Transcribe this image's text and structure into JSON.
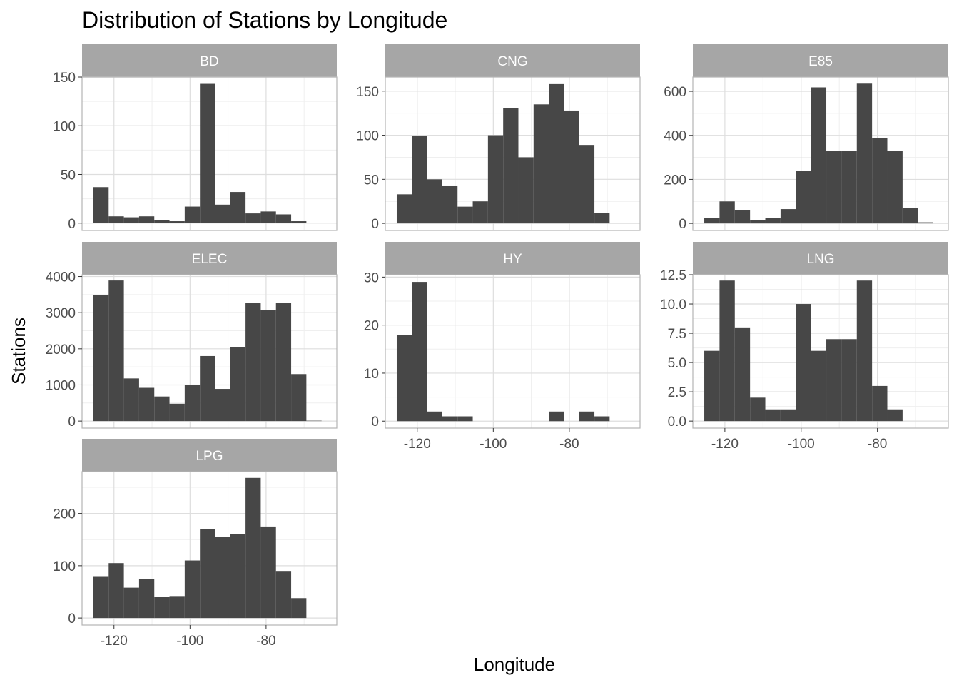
{
  "chart_data": {
    "type": "bar",
    "subtype": "faceted-histogram",
    "title": "Distribution of Stations by Longitude",
    "xlabel": "Longitude",
    "ylabel": "Stations",
    "grid": true,
    "legend": "none",
    "bar_color": "#474747",
    "strip_color": "#a6a6a6",
    "strip_text_color": "#ffffff",
    "panel_border_color": "#b3b3b3",
    "grid_major_color": "#dedede",
    "grid_minor_color": "#efefef",
    "xlim": [
      -128.4,
      -61.4
    ],
    "x_ticks": [
      -120,
      -100,
      -80
    ],
    "x_tick_labels": [
      "-120",
      "-100",
      "-80"
    ],
    "bin_edges": [
      -125.4,
      -121.4,
      -117.4,
      -113.4,
      -109.4,
      -105.4,
      -101.4,
      -97.4,
      -93.4,
      -89.4,
      -85.4,
      -81.4,
      -77.4,
      -73.4,
      -69.4,
      -65.4
    ],
    "facets": [
      {
        "name": "BD",
        "counts": [
          37,
          7,
          6,
          7,
          3,
          2,
          17,
          143,
          19,
          32,
          10,
          12,
          9,
          2,
          0
        ],
        "ylim": [
          -7.5,
          150
        ],
        "y_ticks": [
          0,
          50,
          100,
          150
        ],
        "y_tick_labels": [
          "0",
          "50",
          "100",
          "150"
        ]
      },
      {
        "name": "CNG",
        "counts": [
          33,
          99,
          50,
          43,
          19,
          25,
          100,
          131,
          75,
          135,
          158,
          128,
          89,
          12,
          0
        ],
        "ylim": [
          -8,
          166
        ],
        "y_ticks": [
          0,
          50,
          100,
          150
        ],
        "y_tick_labels": [
          "0",
          "50",
          "100",
          "150"
        ]
      },
      {
        "name": "E85",
        "counts": [
          25,
          100,
          62,
          14,
          25,
          65,
          240,
          618,
          328,
          328,
          635,
          388,
          328,
          70,
          5
        ],
        "ylim": [
          -32,
          665
        ],
        "y_ticks": [
          0,
          200,
          400,
          600
        ],
        "y_tick_labels": [
          "0",
          "200",
          "400",
          "600"
        ]
      },
      {
        "name": "ELEC",
        "counts": [
          3480,
          3890,
          1180,
          920,
          680,
          480,
          1000,
          1800,
          890,
          2050,
          3260,
          3080,
          3260,
          1300,
          10
        ],
        "ylim": [
          -195,
          4050
        ],
        "y_ticks": [
          0,
          1000,
          2000,
          3000,
          4000
        ],
        "y_tick_labels": [
          "0",
          "1000",
          "2000",
          "3000",
          "4000"
        ]
      },
      {
        "name": "HY",
        "counts": [
          18,
          29,
          2,
          1,
          1,
          0,
          0,
          0,
          0,
          0,
          2,
          0,
          2,
          1,
          0
        ],
        "ylim": [
          -1.45,
          30.5
        ],
        "y_ticks": [
          0,
          10,
          20,
          30
        ],
        "y_tick_labels": [
          "0",
          "10",
          "20",
          "30"
        ]
      },
      {
        "name": "LNG",
        "counts": [
          6,
          12,
          8,
          2,
          1,
          1,
          10,
          6,
          7,
          7,
          12,
          3,
          1,
          0,
          0
        ],
        "ylim": [
          -0.6,
          12.5
        ],
        "y_ticks": [
          0,
          2.5,
          5,
          7.5,
          10,
          12.5
        ],
        "y_tick_labels": [
          "0.0",
          "2.5",
          "5.0",
          "7.5",
          "10.0",
          "12.5"
        ]
      },
      {
        "name": "LPG",
        "counts": [
          80,
          105,
          58,
          75,
          40,
          42,
          110,
          170,
          155,
          160,
          268,
          175,
          90,
          38,
          0
        ],
        "ylim": [
          -13.5,
          280
        ],
        "y_ticks": [
          0,
          100,
          200
        ],
        "y_tick_labels": [
          "0",
          "100",
          "200"
        ]
      }
    ]
  }
}
